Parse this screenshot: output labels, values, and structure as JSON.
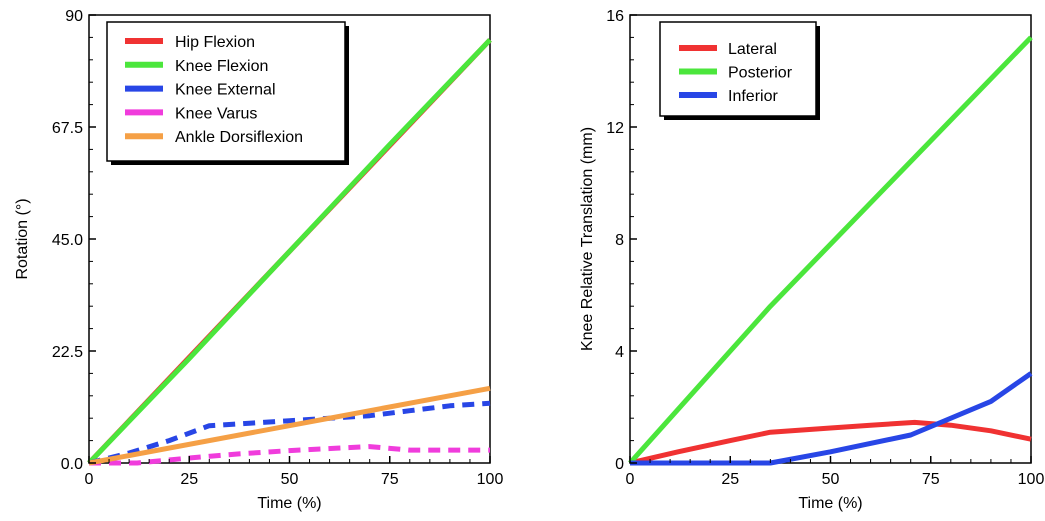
{
  "chart_data": [
    {
      "type": "line",
      "xlabel": "Time (%)",
      "ylabel": "Rotation (°)",
      "xlim": [
        0,
        100
      ],
      "ylim": [
        0,
        90
      ],
      "xticks": [
        "0",
        "25",
        "50",
        "75",
        "100"
      ],
      "yticks": [
        "0.0",
        "22.5",
        "45.0",
        "67.5",
        "90"
      ],
      "grid": false,
      "legend_position": "top-left",
      "series": [
        {
          "name": "Hip Flexion",
          "color": "#f03232",
          "dash": "solid",
          "x": [
            0,
            100
          ],
          "y": [
            0,
            85
          ]
        },
        {
          "name": "Knee Flexion",
          "color": "#4be63c",
          "dash": "solid",
          "x": [
            0,
            25,
            50,
            75,
            100
          ],
          "y": [
            0,
            21,
            42.5,
            64,
            85
          ]
        },
        {
          "name": "Knee External",
          "color": "#2846e6",
          "dash": "dashed",
          "x": [
            0,
            10,
            20,
            30,
            40,
            50,
            60,
            70,
            80,
            90,
            100
          ],
          "y": [
            0,
            2,
            4.5,
            7.5,
            8,
            8.5,
            9,
            9.5,
            10.5,
            11.5,
            12
          ]
        },
        {
          "name": "Knee Varus",
          "color": "#f03cdc",
          "dash": "dashed",
          "x": [
            0,
            12,
            25,
            37,
            50,
            62,
            70,
            80,
            90,
            100
          ],
          "y": [
            0,
            0,
            1,
            1.8,
            2.5,
            3,
            3.3,
            2.6,
            2.6,
            2.6
          ]
        },
        {
          "name": "Ankle Dorsiflexion",
          "color": "#f5a046",
          "dash": "solid",
          "x": [
            0,
            100
          ],
          "y": [
            0,
            15
          ]
        }
      ]
    },
    {
      "type": "line",
      "xlabel": "Time (%)",
      "ylabel": "Knee Relative Translation (mm)",
      "xlim": [
        0,
        100
      ],
      "ylim": [
        0,
        16
      ],
      "xticks": [
        "0",
        "25",
        "50",
        "75",
        "100"
      ],
      "yticks": [
        "0",
        "4",
        "8",
        "12",
        "16"
      ],
      "grid": false,
      "legend_position": "top-left",
      "series": [
        {
          "name": "Lateral",
          "color": "#f03232",
          "dash": "solid",
          "x": [
            0,
            12,
            25,
            35,
            50,
            60,
            71,
            80,
            90,
            100
          ],
          "y": [
            0,
            0.4,
            0.8,
            1.1,
            1.25,
            1.35,
            1.45,
            1.35,
            1.15,
            0.85
          ]
        },
        {
          "name": "Posterior",
          "color": "#4be63c",
          "dash": "solid",
          "x": [
            0,
            35,
            100
          ],
          "y": [
            0,
            5.6,
            15.2
          ]
        },
        {
          "name": "Inferior",
          "color": "#2846e6",
          "dash": "solid",
          "x": [
            0,
            35,
            50,
            70,
            90,
            100
          ],
          "y": [
            0,
            0,
            0.4,
            1.0,
            2.2,
            3.2
          ]
        }
      ]
    }
  ]
}
